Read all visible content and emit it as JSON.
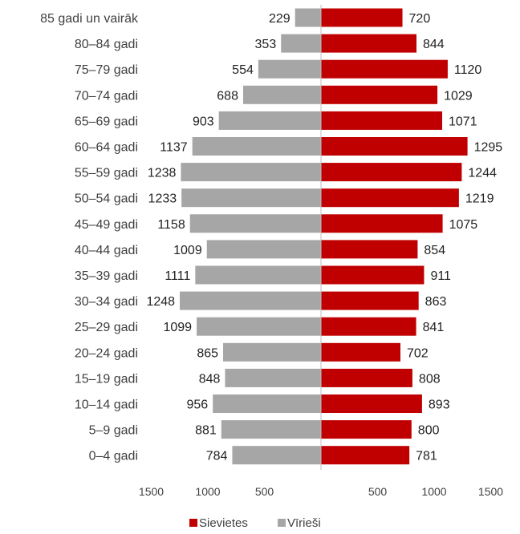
{
  "chart_data": {
    "type": "bar",
    "orientation": "horizontal-butterfly",
    "categories": [
      "85 gadi un vairāk",
      "80–84 gadi",
      "75–79 gadi",
      "70–74 gadi",
      "65–69 gadi",
      "60–64 gadi",
      "55–59 gadi",
      "50–54 gadi",
      "45–49 gadi",
      "40–44 gadi",
      "35–39 gadi",
      "30–34 gadi",
      "25–29 gadi",
      "20–24 gadi",
      "15–19 gadi",
      "10–14 gadi",
      "5–9 gadi",
      "0–4 gadi"
    ],
    "series": [
      {
        "name": "Vīrieši",
        "side": "left",
        "color": "#a6a6a6",
        "values": [
          229,
          353,
          554,
          688,
          903,
          1137,
          1238,
          1233,
          1158,
          1009,
          1111,
          1248,
          1099,
          865,
          848,
          956,
          881,
          784
        ]
      },
      {
        "name": "Sievietes",
        "side": "right",
        "color": "#c00000",
        "values": [
          720,
          844,
          1120,
          1029,
          1071,
          1295,
          1244,
          1219,
          1075,
          854,
          911,
          863,
          841,
          702,
          808,
          893,
          800,
          781
        ]
      }
    ],
    "xlim": [
      0,
      1500
    ],
    "x_ticks_left": [
      "1500",
      "1000",
      "500"
    ],
    "x_tick_values_left": [
      1500,
      1000,
      500
    ],
    "x_ticks_right": [
      "500",
      "1000",
      "1500"
    ],
    "x_tick_values_right": [
      500,
      1000,
      1500
    ],
    "legend": {
      "position": "bottom",
      "entries": [
        {
          "label": "Sievietes",
          "color": "#c00000"
        },
        {
          "label": "Vīrieši",
          "color": "#a6a6a6"
        }
      ]
    },
    "grid": false
  }
}
